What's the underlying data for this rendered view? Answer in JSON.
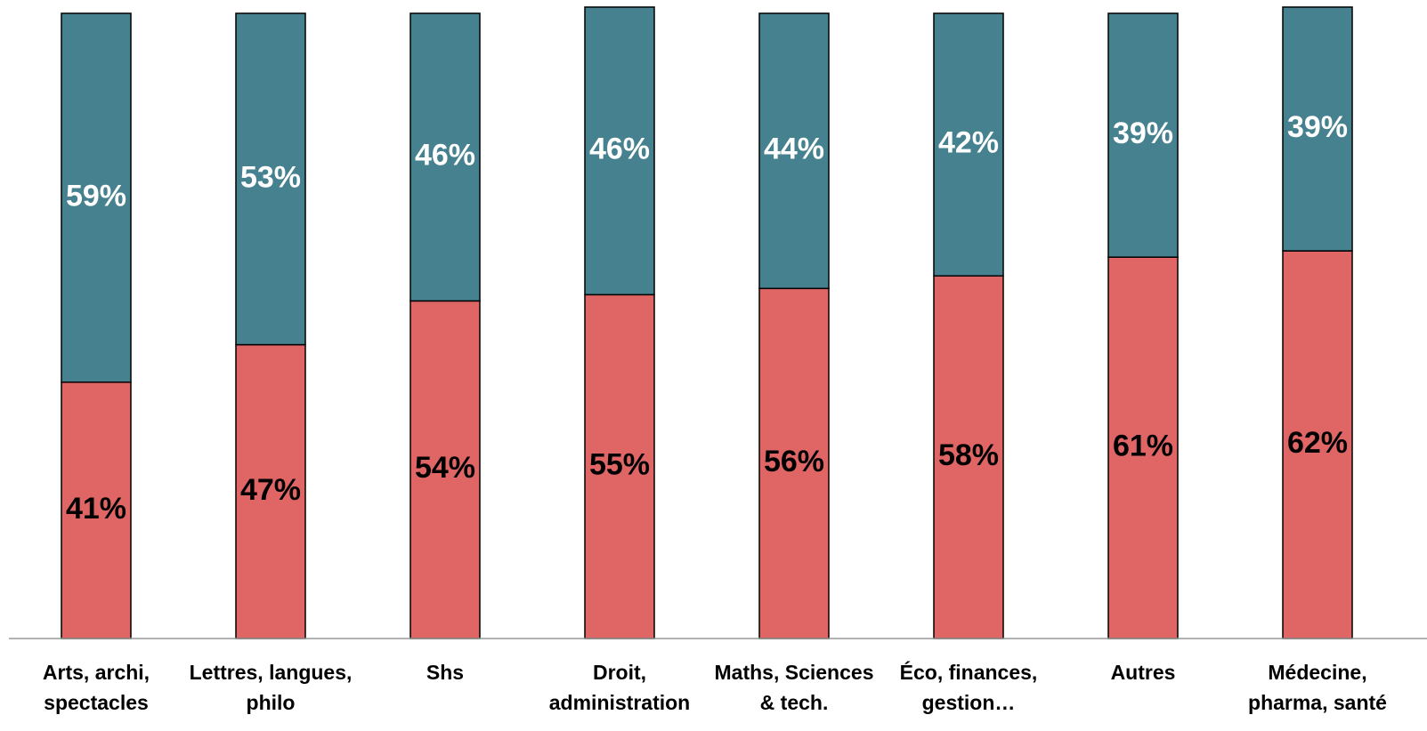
{
  "chart_data": {
    "type": "bar",
    "stacked": true,
    "normalized": true,
    "categories": [
      [
        "Arts, archi,",
        "spectacles"
      ],
      [
        "Lettres, langues,",
        "philo"
      ],
      [
        "Shs"
      ],
      [
        "Droit,",
        "administration"
      ],
      [
        "Maths, Sciences",
        "& tech."
      ],
      [
        "Éco, finances,",
        "gestion…"
      ],
      [
        "Autres"
      ],
      [
        "Médecine,",
        "pharma, santé"
      ]
    ],
    "series": [
      {
        "values": [
          41,
          47,
          54,
          55,
          56,
          58,
          61,
          62
        ],
        "color": "#E06666",
        "label_color": "#000000"
      },
      {
        "values": [
          59,
          53,
          46,
          46,
          44,
          42,
          39,
          39
        ],
        "color": "#45818E",
        "label_color": "#ffffff"
      }
    ],
    "data_labels": [
      [
        "41%",
        "47%",
        "54%",
        "55%",
        "56%",
        "58%",
        "61%",
        "62%"
      ],
      [
        "59%",
        "53%",
        "46%",
        "46%",
        "44%",
        "42%",
        "39%",
        "39%"
      ]
    ],
    "ylim": [
      0,
      100
    ],
    "grid": false,
    "legend": "none",
    "xlabel": "",
    "ylabel": ""
  }
}
